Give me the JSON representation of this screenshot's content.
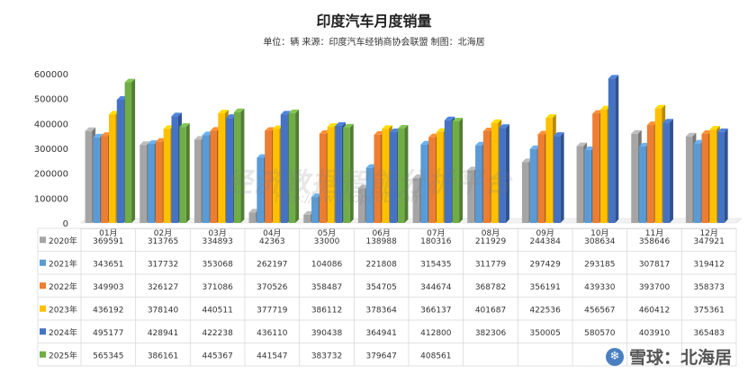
{
  "chart_data": {
    "type": "bar",
    "title": "印度汽车月度销量",
    "subtitle": "单位：辆 来源：印度汽车经销商协会联盟 制图：北海居",
    "categories": [
      "01月",
      "02月",
      "03月",
      "04月",
      "05月",
      "06月",
      "07月",
      "08月",
      "09月",
      "10月",
      "11月",
      "12月"
    ],
    "ylim": [
      0,
      600000
    ],
    "yticks": [
      "0",
      "100000",
      "200000",
      "300000",
      "400000",
      "500000",
      "600000"
    ],
    "grid": false,
    "legend": "table-below",
    "series": [
      {
        "name": "2020年",
        "color": "#a5a5a5",
        "values": [
          369591,
          313765,
          334893,
          42363,
          33000,
          138988,
          180316,
          211929,
          244384,
          308634,
          358646,
          347921
        ],
        "labels": [
          "369591",
          "313765",
          "334893",
          "42363",
          "33000",
          "138988",
          "180316",
          "211929",
          "244384",
          "308634",
          "358646",
          "347921"
        ]
      },
      {
        "name": "2021年",
        "color": "#5b9bd5",
        "values": [
          343651,
          317732,
          353068,
          262197,
          104086,
          221808,
          315435,
          311779,
          297429,
          293185,
          307817,
          319412
        ],
        "labels": [
          "343651",
          "317732",
          "353068",
          "262197",
          "104086",
          "221808",
          "315435",
          "311779",
          "297429",
          "293185",
          "307817",
          "319412"
        ]
      },
      {
        "name": "2022年",
        "color": "#ed7d31",
        "values": [
          349903,
          326127,
          371086,
          370526,
          358487,
          354705,
          344674,
          368782,
          356191,
          439330,
          393700,
          358373
        ],
        "labels": [
          "349903",
          "326127",
          "371086",
          "370526",
          "358487",
          "354705",
          "344674",
          "368782",
          "356191",
          "439330",
          "393700",
          "358373"
        ]
      },
      {
        "name": "2023年",
        "color": "#ffc000",
        "values": [
          436192,
          378140,
          440511,
          377719,
          386112,
          378364,
          366137,
          401687,
          422536,
          456567,
          460412,
          375361
        ],
        "labels": [
          "436192",
          "378140",
          "440511",
          "377719",
          "386112",
          "378364",
          "366137",
          "401687",
          "422536",
          "456567",
          "460412",
          "375361"
        ]
      },
      {
        "name": "2024年",
        "color": "#4472c4",
        "values": [
          495177,
          428941,
          422238,
          436110,
          390438,
          364941,
          412800,
          382306,
          350005,
          580570,
          403910,
          365483
        ],
        "labels": [
          "495177",
          "428941",
          "422238",
          "436110",
          "390438",
          "364941",
          "412800",
          "382306",
          "350005",
          "580570",
          "403910",
          "365483"
        ]
      },
      {
        "name": "2025年",
        "color": "#70ad47",
        "values": [
          565345,
          386161,
          445367,
          441547,
          383732,
          379647,
          408561,
          null,
          null,
          null,
          null,
          null
        ],
        "labels": [
          "565345",
          "386161",
          "445367",
          "441547",
          "383732",
          "379647",
          "408561",
          "",
          "",
          "",
          "",
          ""
        ]
      }
    ]
  },
  "watermark": {
    "main": "经济数据智能分析平台",
    "url": "http://www.topedb.com"
  },
  "footer": {
    "logo_icon": "snowball-icon",
    "logo_glyph": "❄",
    "text": "雪球：北海居"
  }
}
